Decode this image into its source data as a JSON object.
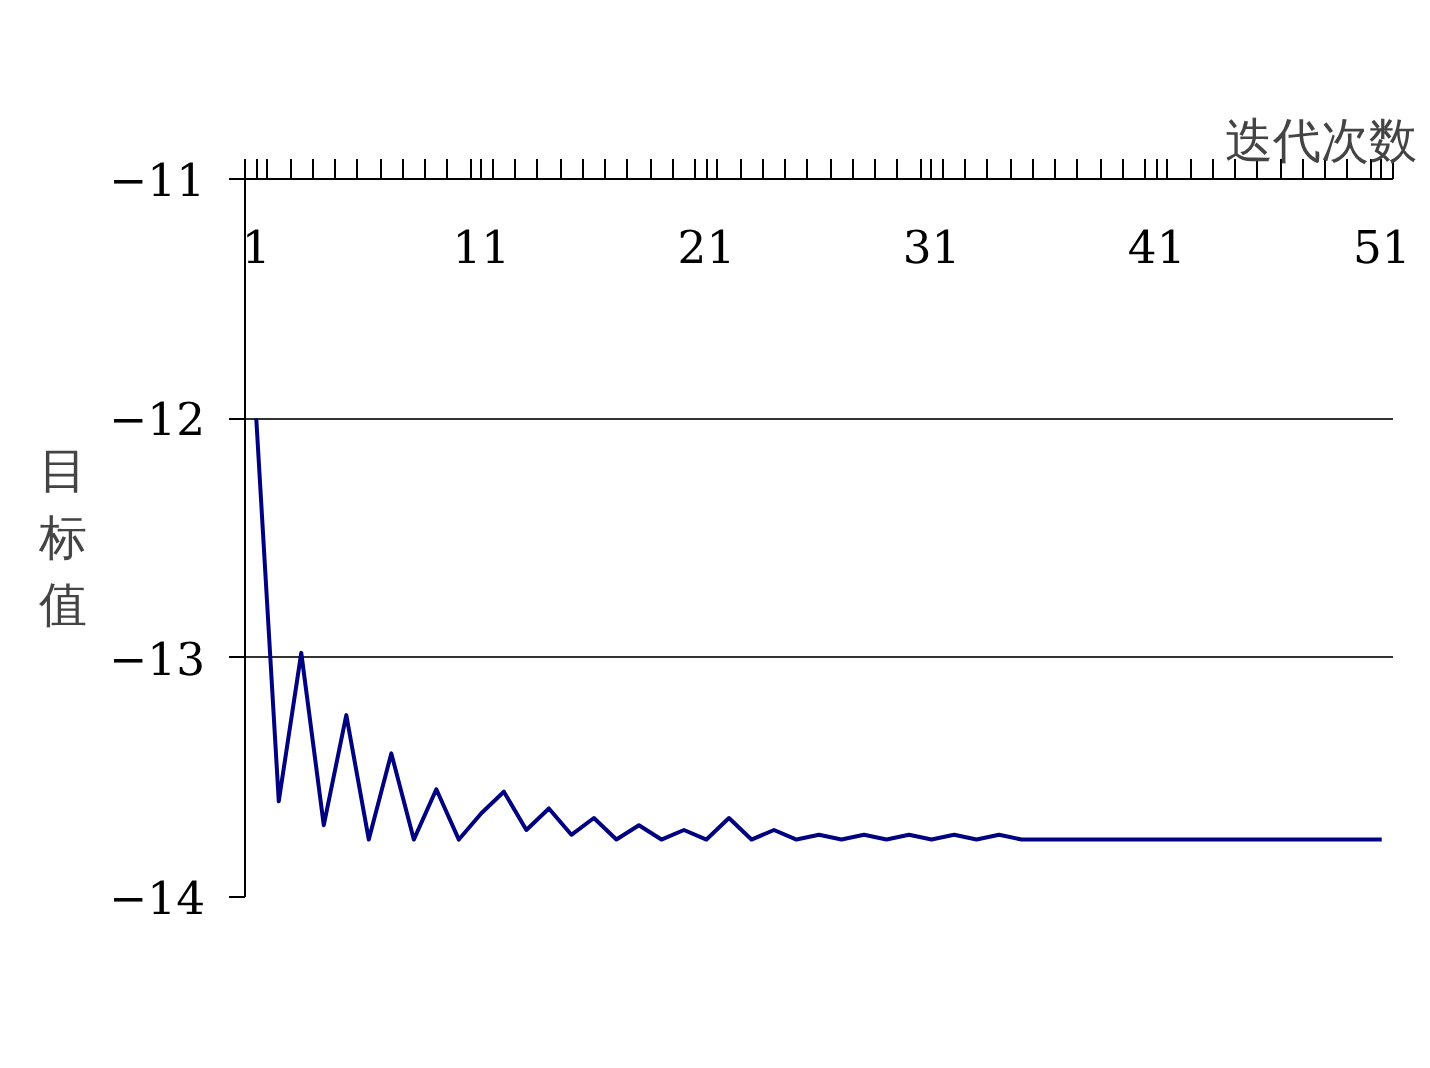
{
  "chart_data": {
    "type": "line",
    "xlabel": "迭代次数",
    "ylabel": "目标值",
    "x": [
      1,
      2,
      3,
      4,
      5,
      6,
      7,
      8,
      9,
      10,
      11,
      12,
      13,
      14,
      15,
      16,
      17,
      18,
      19,
      20,
      21,
      22,
      23,
      24,
      25,
      26,
      27,
      28,
      29,
      30,
      31,
      32,
      33,
      34,
      35,
      36,
      37,
      38,
      39,
      40,
      41,
      42,
      43,
      44,
      45,
      46,
      47,
      48,
      49,
      50,
      51
    ],
    "series": [
      {
        "color": "#000080",
        "values": [
          -12.0,
          -13.6,
          -12.98,
          -13.7,
          -13.24,
          -13.76,
          -13.4,
          -13.76,
          -13.55,
          -13.76,
          -13.65,
          -13.56,
          -13.72,
          -13.63,
          -13.74,
          -13.67,
          -13.76,
          -13.7,
          -13.76,
          -13.72,
          -13.76,
          -13.67,
          -13.76,
          -13.72,
          -13.76,
          -13.74,
          -13.76,
          -13.74,
          -13.76,
          -13.74,
          -13.76,
          -13.74,
          -13.76,
          -13.74,
          -13.76,
          -13.76,
          -13.76,
          -13.76,
          -13.76,
          -13.76,
          -13.76,
          -13.76,
          -13.76,
          -13.76,
          -13.76,
          -13.76,
          -13.76,
          -13.76,
          -13.76,
          -13.76,
          -13.76
        ]
      }
    ],
    "xlim": [
      0.5,
      51.5
    ],
    "xticks": [
      1,
      11,
      21,
      31,
      41,
      51
    ],
    "ylim": [
      -14,
      -11
    ],
    "yticks": [
      -11,
      -12,
      -13,
      -14
    ],
    "grid": "y",
    "marker": "none",
    "line_style": "solid"
  }
}
